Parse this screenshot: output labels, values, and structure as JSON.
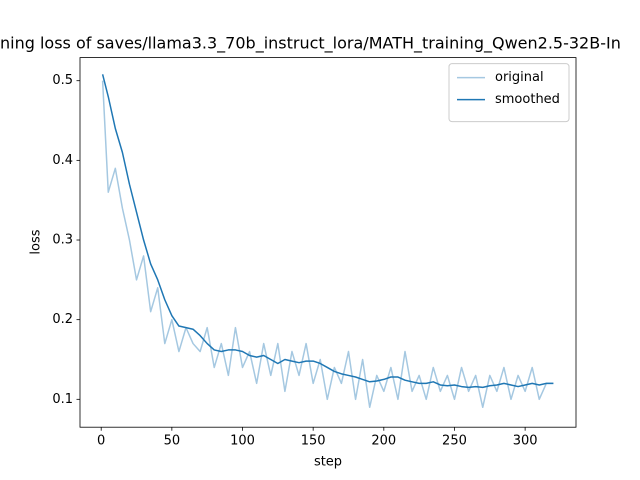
{
  "chart_data": {
    "type": "line",
    "title": "ning loss of saves/llama3.3_70b_instruct_lora/MATH_training_Qwen2.5-32B-In",
    "x_label": "step",
    "y_label": "loss",
    "x": [
      1,
      5,
      10,
      15,
      20,
      25,
      30,
      35,
      40,
      45,
      50,
      55,
      60,
      65,
      70,
      75,
      80,
      85,
      90,
      95,
      100,
      105,
      110,
      115,
      120,
      125,
      130,
      135,
      140,
      145,
      150,
      155,
      160,
      165,
      170,
      175,
      180,
      185,
      190,
      195,
      200,
      205,
      210,
      215,
      220,
      225,
      230,
      235,
      240,
      245,
      250,
      255,
      260,
      265,
      270,
      275,
      280,
      285,
      290,
      295,
      300,
      305,
      310,
      315,
      320
    ],
    "series": [
      {
        "name": "original",
        "color": "#a5c8e1",
        "values": [
          0.5,
          0.36,
          0.39,
          0.34,
          0.3,
          0.25,
          0.28,
          0.21,
          0.24,
          0.17,
          0.2,
          0.16,
          0.19,
          0.17,
          0.16,
          0.19,
          0.14,
          0.17,
          0.13,
          0.19,
          0.14,
          0.16,
          0.12,
          0.17,
          0.13,
          0.17,
          0.11,
          0.16,
          0.13,
          0.17,
          0.12,
          0.15,
          0.1,
          0.14,
          0.12,
          0.16,
          0.1,
          0.15,
          0.09,
          0.13,
          0.11,
          0.14,
          0.1,
          0.16,
          0.11,
          0.13,
          0.1,
          0.14,
          0.11,
          0.13,
          0.1,
          0.14,
          0.11,
          0.13,
          0.09,
          0.13,
          0.11,
          0.14,
          0.1,
          0.13,
          0.11,
          0.14,
          0.1,
          0.12,
          0.12
        ]
      },
      {
        "name": "smoothed",
        "color": "#1f77b4",
        "values": [
          0.508,
          0.48,
          0.44,
          0.41,
          0.37,
          0.335,
          0.3,
          0.27,
          0.25,
          0.225,
          0.205,
          0.192,
          0.19,
          0.188,
          0.18,
          0.17,
          0.162,
          0.16,
          0.162,
          0.162,
          0.16,
          0.155,
          0.153,
          0.155,
          0.15,
          0.145,
          0.15,
          0.148,
          0.146,
          0.148,
          0.148,
          0.145,
          0.14,
          0.135,
          0.132,
          0.13,
          0.128,
          0.125,
          0.122,
          0.123,
          0.125,
          0.128,
          0.128,
          0.124,
          0.122,
          0.12,
          0.12,
          0.122,
          0.118,
          0.117,
          0.118,
          0.116,
          0.115,
          0.116,
          0.115,
          0.117,
          0.118,
          0.12,
          0.118,
          0.116,
          0.118,
          0.12,
          0.118,
          0.12,
          0.12
        ]
      }
    ],
    "xlim": [
      -15,
      336
    ],
    "ylim": [
      0.065,
      0.529
    ],
    "xticks": [
      0,
      50,
      100,
      150,
      200,
      250,
      300
    ],
    "yticks": [
      0.1,
      0.2,
      0.3,
      0.4,
      0.5
    ],
    "legend": "upper right"
  }
}
